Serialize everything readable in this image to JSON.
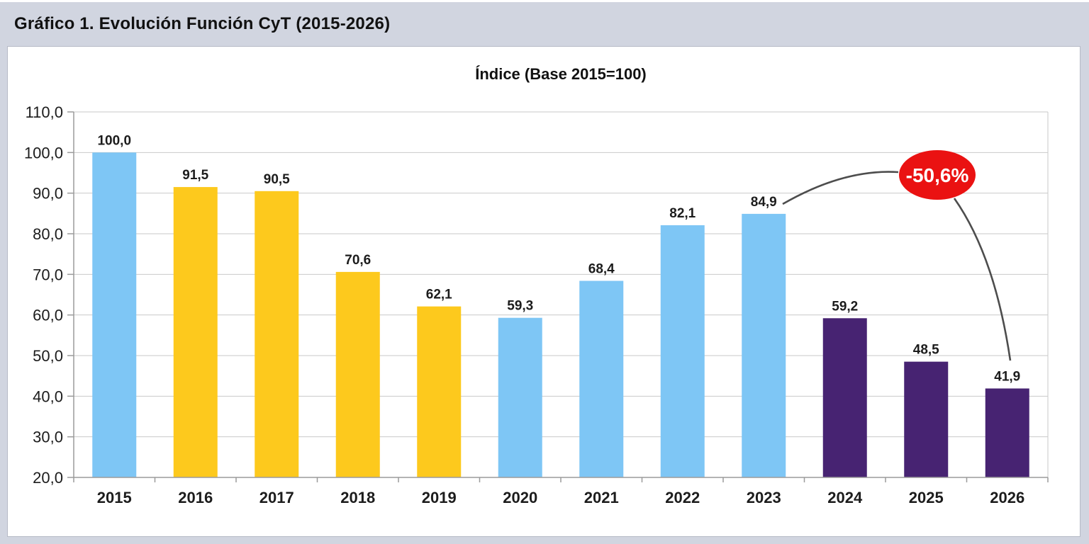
{
  "header": {
    "title": "Gráfico 1. Evolución Función CyT (2015-2026)"
  },
  "chart_data": {
    "type": "bar",
    "title": "Índice (Base 2015=100)",
    "xlabel": "",
    "ylabel": "",
    "categories": [
      "2015",
      "2016",
      "2017",
      "2018",
      "2019",
      "2020",
      "2021",
      "2022",
      "2023",
      "2024",
      "2025",
      "2026"
    ],
    "values": [
      100.0,
      91.5,
      90.5,
      70.6,
      62.1,
      59.3,
      68.4,
      82.1,
      84.9,
      59.2,
      48.5,
      41.9
    ],
    "value_labels": [
      "100,0",
      "91,5",
      "90,5",
      "70,6",
      "62,1",
      "59,3",
      "68,4",
      "82,1",
      "84,9",
      "59,2",
      "48,5",
      "41,9"
    ],
    "bar_colors": [
      "#7ec6f5",
      "#fdc91d",
      "#fdc91d",
      "#fdc91d",
      "#fdc91d",
      "#7ec6f5",
      "#7ec6f5",
      "#7ec6f5",
      "#7ec6f5",
      "#472372",
      "#472372",
      "#472372"
    ],
    "y_axis": {
      "min": 20,
      "max": 110,
      "step": 10,
      "tick_labels": [
        "20,0",
        "30,0",
        "40,0",
        "50,0",
        "60,0",
        "70,0",
        "80,0",
        "90,0",
        "100,0",
        "110,0"
      ]
    },
    "grid": true,
    "legend": "none",
    "annotation": {
      "label": "-50,6%",
      "from_year": "2023",
      "to_year": "2026",
      "bubble_color": "#ea1212",
      "text_color": "#ffffff",
      "line_color": "#4d4d4d"
    }
  },
  "colors": {
    "page_background": "#d1d5e0",
    "panel_background": "#ffffff",
    "gridline": "#c9c9c9",
    "axis": "#9b9b9b",
    "text": "#1c1c1c"
  }
}
